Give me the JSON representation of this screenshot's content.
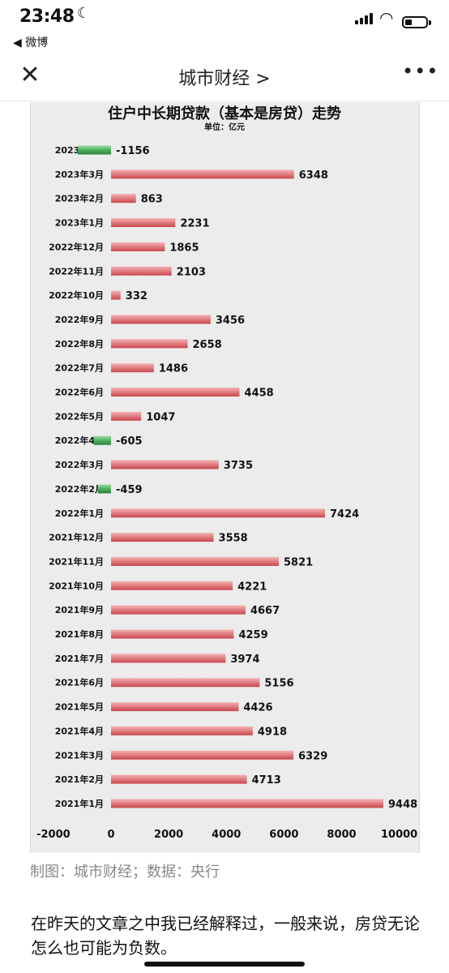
{
  "status": {
    "time": "23:48",
    "back_app": "◀ 微博",
    "moon_icon": "moon-icon",
    "signal_icon": "signal-icon",
    "wifi_icon": "wifi-icon",
    "battery_icon": "battery-icon",
    "battery_level": 0.35
  },
  "nav": {
    "title": "城市财经 >",
    "close_icon": "close-icon",
    "more_icon": "more-icon"
  },
  "chart_data": {
    "type": "bar",
    "orientation": "horizontal",
    "title": "住户中长期贷款（基本是房贷）走势",
    "subtitle": "单位：亿元",
    "categories": [
      "2023年4月",
      "2023年3月",
      "2023年2月",
      "2023年1月",
      "2022年12月",
      "2022年11月",
      "2022年10月",
      "2022年9月",
      "2022年8月",
      "2022年7月",
      "2022年6月",
      "2022年5月",
      "2022年4月",
      "2022年3月",
      "2022年2月",
      "2022年1月",
      "2021年12月",
      "2021年11月",
      "2021年10月",
      "2021年9月",
      "2021年8月",
      "2021年7月",
      "2021年6月",
      "2021年5月",
      "2021年4月",
      "2021年3月",
      "2021年2月",
      "2021年1月"
    ],
    "values": [
      -1156,
      6348,
      863,
      2231,
      1865,
      2103,
      332,
      3456,
      2658,
      1486,
      4458,
      1047,
      -605,
      3735,
      -459,
      7424,
      3558,
      5821,
      4221,
      4667,
      4259,
      3974,
      5156,
      4426,
      4918,
      6329,
      4713,
      9448
    ],
    "x_ticks": [
      "-2000",
      "0",
      "2000",
      "4000",
      "6000",
      "8000",
      "10000"
    ],
    "xlim": [
      -2000,
      10000
    ],
    "colors": {
      "positive": "#d9656b",
      "negative": "#3e9f54"
    },
    "grid": false,
    "legend": "none"
  },
  "caption": "制图：城市财经；数据：央行",
  "body_text": "在昨天的文章之中我已经解释过，一般来说，房贷无论怎么也可能为负数。"
}
